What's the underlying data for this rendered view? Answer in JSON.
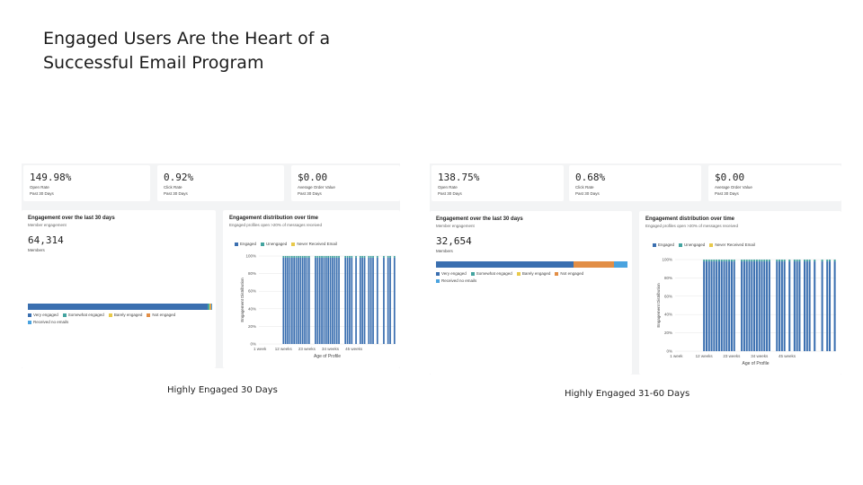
{
  "slide": {
    "title": "Engaged Users Are the Heart of a Successful Email Program"
  },
  "colors": {
    "very_engaged": "#3a6fb0",
    "somewhat_engaged": "#44a4a0",
    "barely_engaged": "#e8c94a",
    "not_engaged": "#e28e46",
    "received_no_emails": "#4aa3df",
    "engaged": "#3a6fb0",
    "unengaged": "#44a4a0",
    "never_received": "#e8c94a"
  },
  "left": {
    "caption": "Highly Engaged 30 Days",
    "kpis": [
      {
        "value": "149.98%",
        "label": "Open Rate",
        "period": "Past 30 Days"
      },
      {
        "value": "0.92%",
        "label": "Click Rate",
        "period": "Past 30 Days"
      },
      {
        "value": "$0.00",
        "label": "Average Order Value",
        "period": "Past 30 Days"
      }
    ],
    "engagement": {
      "title": "Engagement over the last 30 days",
      "subtitle": "Member engagement",
      "value": "64,314",
      "unit": "Members",
      "split": [
        0.975,
        0.01,
        0.005,
        0.005,
        0.005
      ],
      "legend": [
        "Very engaged",
        "Somewhat engaged",
        "Barely engaged",
        "Not engaged",
        "Received no emails"
      ]
    },
    "distribution": {
      "title": "Engagement distribution over time",
      "subtitle": "Engaged profiles open >20% of messages received",
      "legend": [
        "Engaged",
        "Unengaged",
        "Never Received Email"
      ]
    }
  },
  "right": {
    "caption": "Highly Engaged 31-60 Days",
    "kpis": [
      {
        "value": "138.75%",
        "label": "Open Rate",
        "period": "Past 30 Days"
      },
      {
        "value": "0.68%",
        "label": "Click Rate",
        "period": "Past 30 Days"
      },
      {
        "value": "$0.00",
        "label": "Average Order Value",
        "period": "Past 30 Days"
      }
    ],
    "engagement": {
      "title": "Engagement over the last 30 days",
      "subtitle": "Member engagement",
      "value": "32,654",
      "unit": "Members",
      "split": [
        0.72,
        0.0,
        0.0,
        0.21,
        0.07
      ],
      "legend": [
        "Very engaged",
        "Somewhat engaged",
        "Barely engaged",
        "Not engaged",
        "Received no emails"
      ]
    },
    "distribution": {
      "title": "Engagement distribution over time",
      "subtitle": "Engaged profiles open >20% of messages received",
      "legend": [
        "Engaged",
        "Unengaged",
        "Never Received Email"
      ]
    }
  },
  "chart_data": [
    {
      "type": "bar",
      "ylabel": "Engagement Distribution",
      "xlabel": "Age of Profile",
      "ylim": [
        0,
        100
      ],
      "yticks": [
        "0%",
        "20%",
        "40%",
        "60%",
        "80%",
        "100%"
      ],
      "xticks": [
        "1 week",
        "12 weeks",
        "23 weeks",
        "34 weeks",
        "45 weeks"
      ],
      "series": [
        {
          "name": "Engaged",
          "values": [
            0,
            0,
            0,
            0,
            0,
            0,
            0,
            0,
            0,
            0,
            0,
            98,
            98,
            98,
            98,
            98,
            98,
            98,
            98,
            98,
            98,
            98,
            98,
            98,
            0,
            0,
            98,
            98,
            98,
            98,
            98,
            98,
            98,
            98,
            98,
            98,
            98,
            98,
            0,
            0,
            98,
            98,
            98,
            98,
            0,
            98,
            0,
            98,
            98,
            98,
            0,
            98,
            98,
            98,
            0,
            98,
            0,
            0,
            98,
            0,
            98,
            98,
            0,
            98
          ]
        }
      ]
    },
    {
      "type": "bar",
      "ylabel": "Engagement Distribution",
      "xlabel": "Age of Profile",
      "ylim": [
        0,
        100
      ],
      "yticks": [
        "0%",
        "20%",
        "40%",
        "60%",
        "80%",
        "100%"
      ],
      "xticks": [
        "1 week",
        "12 weeks",
        "23 weeks",
        "34 weeks",
        "45 weeks"
      ],
      "series": [
        {
          "name": "Engaged",
          "values": [
            0,
            0,
            0,
            0,
            0,
            0,
            0,
            0,
            0,
            0,
            0,
            98,
            98,
            98,
            98,
            98,
            98,
            98,
            98,
            98,
            98,
            98,
            98,
            98,
            0,
            0,
            98,
            98,
            98,
            98,
            98,
            98,
            98,
            98,
            98,
            98,
            98,
            98,
            0,
            0,
            98,
            98,
            98,
            98,
            0,
            98,
            0,
            98,
            98,
            98,
            0,
            98,
            98,
            98,
            0,
            98,
            0,
            0,
            98,
            0,
            98,
            98,
            0,
            98
          ]
        }
      ]
    }
  ]
}
